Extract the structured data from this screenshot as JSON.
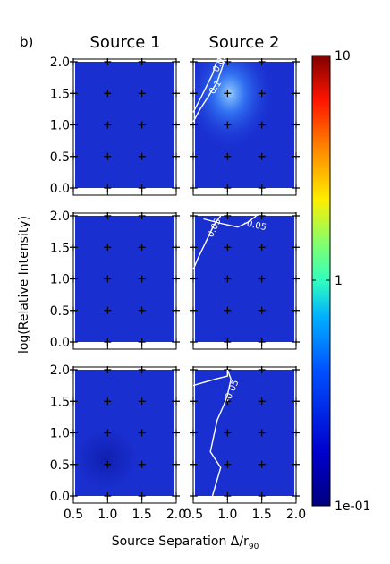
{
  "chart_data": {
    "type": "heatmap",
    "panel_label": "b)",
    "column_titles": [
      "Source 1",
      "Source 2"
    ],
    "xlabel": "Source Separation Δ/r",
    "xlabel_subscript": "90",
    "ylabel": "log(Relative Intensity)",
    "xlim": [
      0.5,
      2.0
    ],
    "ylim": [
      0.0,
      2.0
    ],
    "x_ticks": [
      "0.5",
      "1.0",
      "1.5",
      "2.0"
    ],
    "y_ticks": [
      "0.0",
      "0.5",
      "1.0",
      "1.5",
      "2.0"
    ],
    "grid_x": [
      0.5,
      1.0,
      1.5,
      2.0
    ],
    "grid_y": [
      0.0,
      0.5,
      1.0,
      1.5,
      2.0
    ],
    "colorbar": {
      "scale": "log",
      "range": [
        0.1,
        10
      ],
      "tick_labels": [
        "10",
        "1",
        "1e-01"
      ],
      "colormap": "jet"
    },
    "panels": [
      {
        "row": 0,
        "col": 0,
        "contours": []
      },
      {
        "row": 0,
        "col": 1,
        "contours": [
          {
            "label": "0.1",
            "points": [
              [
                0.5,
                1.05
              ],
              [
                0.6,
                1.25
              ],
              [
                0.72,
                1.45
              ],
              [
                0.85,
                1.68
              ],
              [
                0.95,
                2.0
              ]
            ]
          },
          {
            "label": "0.05",
            "points": [
              [
                0.5,
                1.2
              ],
              [
                0.62,
                1.45
              ],
              [
                0.78,
                1.8
              ],
              [
                0.84,
                2.0
              ]
            ]
          }
        ]
      },
      {
        "row": 1,
        "col": 0,
        "contours": []
      },
      {
        "row": 1,
        "col": 1,
        "contours": [
          {
            "label": "-0.05",
            "points": [
              [
                0.65,
                1.95
              ],
              [
                0.9,
                1.88
              ],
              [
                1.15,
                1.82
              ],
              [
                1.3,
                1.9
              ],
              [
                1.42,
                2.0
              ]
            ]
          },
          {
            "label": "0.05",
            "points": [
              [
                0.5,
                1.15
              ],
              [
                0.58,
                1.35
              ],
              [
                0.7,
                1.62
              ],
              [
                0.8,
                1.85
              ],
              [
                0.9,
                2.0
              ]
            ]
          }
        ]
      },
      {
        "row": 2,
        "col": 0,
        "contours": []
      },
      {
        "row": 2,
        "col": 1,
        "contours": [
          {
            "label": "",
            "points": [
              [
                1.0,
                2.0
              ],
              [
                1.0,
                1.9
              ],
              [
                0.82,
                1.85
              ],
              [
                0.5,
                1.75
              ]
            ]
          },
          {
            "label": "-0.05",
            "points": [
              [
                0.78,
                0.0
              ],
              [
                0.9,
                0.45
              ],
              [
                0.75,
                0.7
              ],
              [
                0.85,
                1.2
              ],
              [
                0.95,
                1.45
              ],
              [
                1.0,
                1.6
              ],
              [
                1.05,
                1.85
              ],
              [
                1.0,
                2.0
              ]
            ]
          }
        ]
      }
    ]
  }
}
